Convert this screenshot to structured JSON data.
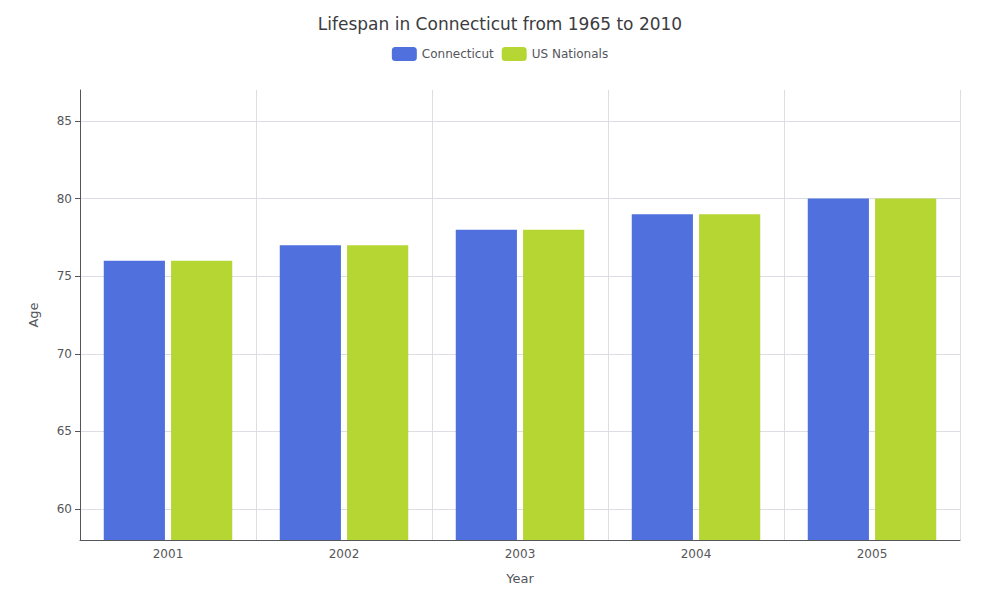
{
  "chart_data": {
    "type": "bar",
    "title": "Lifespan in Connecticut from 1965 to 2010",
    "xlabel": "Year",
    "ylabel": "Age",
    "categories": [
      "2001",
      "2002",
      "2003",
      "2004",
      "2005"
    ],
    "series": [
      {
        "name": "Connecticut",
        "values": [
          76,
          77,
          78,
          79,
          80
        ]
      },
      {
        "name": "US Nationals",
        "values": [
          76,
          77,
          78,
          79,
          80
        ]
      }
    ],
    "ylim": [
      58,
      87
    ],
    "yticks": [
      60,
      65,
      70,
      75,
      80,
      85
    ],
    "grid": true,
    "legend": "top"
  }
}
